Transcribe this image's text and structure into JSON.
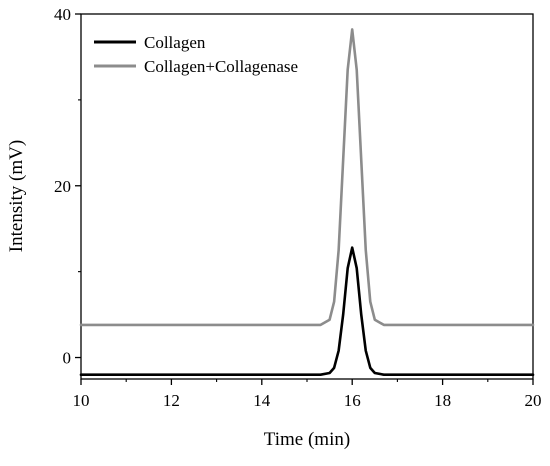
{
  "chart_data": {
    "type": "line",
    "xlabel": "Time (min)",
    "ylabel": "Intensity (mV)",
    "xlim": [
      10,
      20
    ],
    "ylim": [
      -2.5,
      40
    ],
    "x_ticks": [
      10,
      12,
      14,
      16,
      18,
      20
    ],
    "y_ticks": [
      0,
      20,
      40
    ],
    "grid": false,
    "legend_position": "top-left",
    "series": [
      {
        "name": "Collagen",
        "color": "#000000",
        "x": [
          10,
          15.3,
          15.5,
          15.6,
          15.7,
          15.8,
          15.9,
          16.0,
          16.1,
          16.2,
          16.3,
          16.4,
          16.5,
          16.7,
          20
        ],
        "y": [
          -2.0,
          -2.0,
          -1.8,
          -1.2,
          0.8,
          5.0,
          10.4,
          12.8,
          10.4,
          5.0,
          0.8,
          -1.2,
          -1.8,
          -2.0,
          -2.0
        ]
      },
      {
        "name": "Collagen+Collagenase",
        "color": "#8c8c8c",
        "x": [
          10,
          15.3,
          15.5,
          15.6,
          15.7,
          15.8,
          15.9,
          16.0,
          16.1,
          16.2,
          16.3,
          16.4,
          16.5,
          16.7,
          20
        ],
        "y": [
          3.8,
          3.8,
          4.4,
          6.5,
          12.5,
          23.0,
          33.5,
          38.2,
          33.5,
          23.0,
          12.5,
          6.5,
          4.4,
          3.8,
          3.8
        ]
      }
    ]
  }
}
